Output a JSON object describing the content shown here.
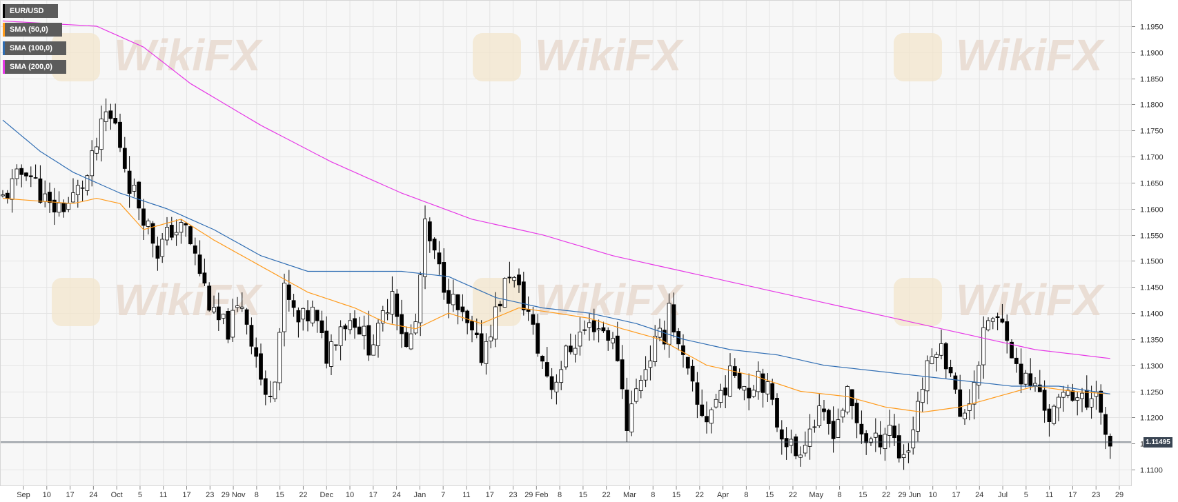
{
  "legend": {
    "symbol": "EUR/USD",
    "sma50": "SMA (50,0)",
    "sma100": "SMA (100,0)",
    "sma200": "SMA (200,0)"
  },
  "watermark": "WikiFX",
  "colors": {
    "background": "#f7f7f7",
    "grid": "#e4e4e4",
    "candle_up": "#ffffff",
    "candle_down": "#000000",
    "sma50": "#ff9a1a",
    "sma100": "#2f6db3",
    "sma200": "#e637e6",
    "price_line": "#3a4553"
  },
  "current_price": "1.11495",
  "chart_data": {
    "type": "candlestick",
    "title": "EUR/USD",
    "ylim": [
      1.106,
      1.2
    ],
    "y_ticks": [
      "1.1950",
      "1.1900",
      "1.1850",
      "1.1800",
      "1.1750",
      "1.1700",
      "1.1650",
      "1.1600",
      "1.1550",
      "1.1500",
      "1.1450",
      "1.1400",
      "1.1350",
      "1.1300",
      "1.1250",
      "1.1200",
      "1.1150",
      "1.1100"
    ],
    "x_tick_labels": [
      "Sep",
      "10",
      "17",
      "24",
      "Oct",
      "5",
      "11",
      "17",
      "23",
      "29 Nov",
      "8",
      "15",
      "22",
      "Dec",
      "10",
      "17",
      "24",
      "Jan",
      "7",
      "11",
      "17",
      "23",
      "29 Feb",
      "8",
      "15",
      "22",
      "Mar",
      "8",
      "15",
      "22",
      "Apr",
      "8",
      "15",
      "22",
      "May",
      "8",
      "15",
      "22",
      "29 Jun",
      "10",
      "17",
      "24",
      "Jul",
      "5",
      "11",
      "17",
      "23",
      "29"
    ],
    "close_path": [
      [
        0,
        1.162
      ],
      [
        5,
        1.168
      ],
      [
        10,
        1.16
      ],
      [
        14,
        1.161
      ],
      [
        18,
        1.166
      ],
      [
        22,
        1.178
      ],
      [
        24,
        1.176
      ],
      [
        27,
        1.165
      ],
      [
        30,
        1.159
      ],
      [
        33,
        1.152
      ],
      [
        36,
        1.156
      ],
      [
        39,
        1.156
      ],
      [
        42,
        1.148
      ],
      [
        45,
        1.139
      ],
      [
        48,
        1.137
      ],
      [
        51,
        1.142
      ],
      [
        54,
        1.132
      ],
      [
        56,
        1.123
      ],
      [
        58,
        1.129
      ],
      [
        60,
        1.144
      ],
      [
        63,
        1.138
      ],
      [
        66,
        1.14
      ],
      [
        69,
        1.132
      ],
      [
        72,
        1.138
      ],
      [
        75,
        1.139
      ],
      [
        78,
        1.134
      ],
      [
        80,
        1.136
      ],
      [
        83,
        1.145
      ],
      [
        86,
        1.133
      ],
      [
        88,
        1.138
      ],
      [
        90,
        1.156
      ],
      [
        93,
        1.148
      ],
      [
        96,
        1.142
      ],
      [
        99,
        1.137
      ],
      [
        102,
        1.132
      ],
      [
        105,
        1.14
      ],
      [
        108,
        1.148
      ],
      [
        110,
        1.144
      ],
      [
        112,
        1.14
      ],
      [
        114,
        1.133
      ],
      [
        117,
        1.126
      ],
      [
        120,
        1.132
      ],
      [
        123,
        1.136
      ],
      [
        126,
        1.138
      ],
      [
        129,
        1.136
      ],
      [
        131,
        1.132
      ],
      [
        133,
        1.119
      ],
      [
        136,
        1.128
      ],
      [
        139,
        1.134
      ],
      [
        141,
        1.136
      ],
      [
        142,
        1.142
      ],
      [
        144,
        1.133
      ],
      [
        146,
        1.128
      ],
      [
        148,
        1.122
      ],
      [
        150,
        1.12
      ],
      [
        153,
        1.125
      ],
      [
        156,
        1.129
      ],
      [
        159,
        1.125
      ],
      [
        161,
        1.129
      ],
      [
        163,
        1.125
      ],
      [
        165,
        1.119
      ],
      [
        167,
        1.116
      ],
      [
        169,
        1.113
      ],
      [
        172,
        1.118
      ],
      [
        174,
        1.12
      ],
      [
        177,
        1.118
      ],
      [
        180,
        1.124
      ],
      [
        182,
        1.119
      ],
      [
        184,
        1.116
      ],
      [
        186,
        1.115
      ],
      [
        189,
        1.119
      ],
      [
        191,
        1.113
      ],
      [
        193,
        1.114
      ],
      [
        195,
        1.123
      ],
      [
        197,
        1.129
      ],
      [
        199,
        1.134
      ],
      [
        202,
        1.13
      ],
      [
        204,
        1.119
      ],
      [
        206,
        1.124
      ],
      [
        208,
        1.131
      ],
      [
        210,
        1.139
      ],
      [
        212,
        1.138
      ],
      [
        214,
        1.137
      ],
      [
        216,
        1.129
      ],
      [
        218,
        1.127
      ],
      [
        221,
        1.125
      ],
      [
        223,
        1.12
      ],
      [
        225,
        1.122
      ],
      [
        227,
        1.126
      ],
      [
        229,
        1.124
      ],
      [
        231,
        1.122
      ],
      [
        233,
        1.127
      ],
      [
        234,
        1.12
      ],
      [
        235,
        1.115
      ],
      [
        236,
        1.1145
      ]
    ],
    "series": [
      {
        "name": "SMA (50,0)",
        "values": [
          [
            0,
            1.162
          ],
          [
            15,
            1.161
          ],
          [
            20,
            1.162
          ],
          [
            25,
            1.161
          ],
          [
            30,
            1.156
          ],
          [
            38,
            1.158
          ],
          [
            45,
            1.154
          ],
          [
            55,
            1.149
          ],
          [
            65,
            1.144
          ],
          [
            75,
            1.141
          ],
          [
            82,
            1.138
          ],
          [
            88,
            1.137
          ],
          [
            95,
            1.14
          ],
          [
            102,
            1.138
          ],
          [
            110,
            1.141
          ],
          [
            118,
            1.14
          ],
          [
            125,
            1.139
          ],
          [
            132,
            1.137
          ],
          [
            140,
            1.135
          ],
          [
            150,
            1.13
          ],
          [
            160,
            1.128
          ],
          [
            170,
            1.125
          ],
          [
            180,
            1.124
          ],
          [
            188,
            1.122
          ],
          [
            196,
            1.121
          ],
          [
            204,
            1.122
          ],
          [
            212,
            1.124
          ],
          [
            220,
            1.126
          ],
          [
            228,
            1.125
          ],
          [
            236,
            1.1245
          ]
        ]
      },
      {
        "name": "SMA (100,0)",
        "values": [
          [
            0,
            1.177
          ],
          [
            8,
            1.171
          ],
          [
            15,
            1.167
          ],
          [
            25,
            1.163
          ],
          [
            35,
            1.16
          ],
          [
            45,
            1.156
          ],
          [
            55,
            1.151
          ],
          [
            65,
            1.148
          ],
          [
            75,
            1.148
          ],
          [
            85,
            1.148
          ],
          [
            95,
            1.147
          ],
          [
            105,
            1.143
          ],
          [
            115,
            1.141
          ],
          [
            125,
            1.14
          ],
          [
            135,
            1.138
          ],
          [
            145,
            1.135
          ],
          [
            155,
            1.133
          ],
          [
            165,
            1.132
          ],
          [
            175,
            1.13
          ],
          [
            185,
            1.129
          ],
          [
            195,
            1.128
          ],
          [
            205,
            1.127
          ],
          [
            215,
            1.126
          ],
          [
            225,
            1.126
          ],
          [
            236,
            1.1245
          ]
        ]
      },
      {
        "name": "SMA (200,0)",
        "values": [
          [
            0,
            1.196
          ],
          [
            10,
            1.1955
          ],
          [
            20,
            1.195
          ],
          [
            30,
            1.191
          ],
          [
            40,
            1.184
          ],
          [
            55,
            1.176
          ],
          [
            70,
            1.169
          ],
          [
            85,
            1.163
          ],
          [
            100,
            1.158
          ],
          [
            115,
            1.155
          ],
          [
            130,
            1.151
          ],
          [
            145,
            1.148
          ],
          [
            160,
            1.145
          ],
          [
            175,
            1.142
          ],
          [
            190,
            1.139
          ],
          [
            205,
            1.136
          ],
          [
            220,
            1.133
          ],
          [
            236,
            1.1313
          ]
        ]
      }
    ]
  }
}
